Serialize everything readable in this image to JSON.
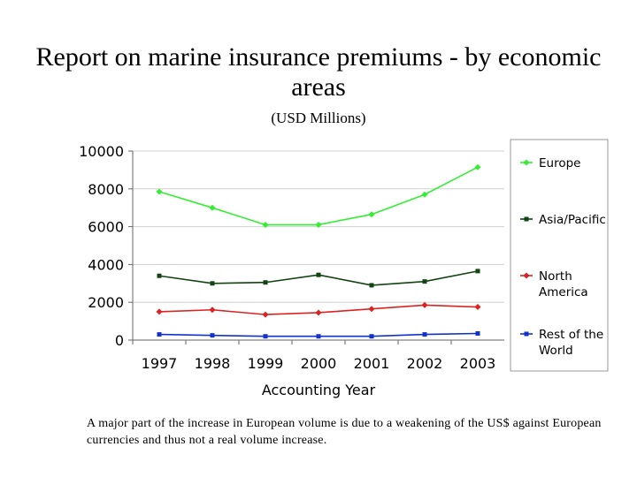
{
  "chart_data": {
    "type": "line",
    "title": "Report on marine insurance premiums - by economic areas",
    "subtitle": "(USD Millions)",
    "xlabel": "Accounting Year",
    "ylabel": "",
    "categories": [
      "1997",
      "1998",
      "1999",
      "2000",
      "2001",
      "2002",
      "2003"
    ],
    "ylim": [
      0,
      10000
    ],
    "yticks": [
      "0",
      "2000",
      "4000",
      "6000",
      "8000",
      "10000"
    ],
    "legend_position": "right",
    "series": [
      {
        "name": "Europe",
        "color": "#33ee33",
        "marker": "diamond",
        "values": [
          7850,
          7000,
          6100,
          6100,
          6650,
          7700,
          9150
        ]
      },
      {
        "name": "Asia/Pacific",
        "color": "#114411",
        "marker": "square",
        "values": [
          3400,
          3000,
          3050,
          3450,
          2900,
          3100,
          3650
        ]
      },
      {
        "name": "North America",
        "legend_lines": [
          "North",
          "America"
        ],
        "color": "#dd2222",
        "marker": "diamond",
        "values": [
          1500,
          1600,
          1350,
          1450,
          1650,
          1850,
          1750
        ]
      },
      {
        "name": "Rest of the World",
        "legend_lines": [
          "Rest of the",
          "World"
        ],
        "color": "#1133cc",
        "marker": "square",
        "values": [
          300,
          250,
          200,
          200,
          200,
          300,
          350
        ]
      }
    ]
  },
  "footnote": "A major part of the increase in European volume is due to a weakening of the US$ against European currencies and thus not a real volume increase."
}
